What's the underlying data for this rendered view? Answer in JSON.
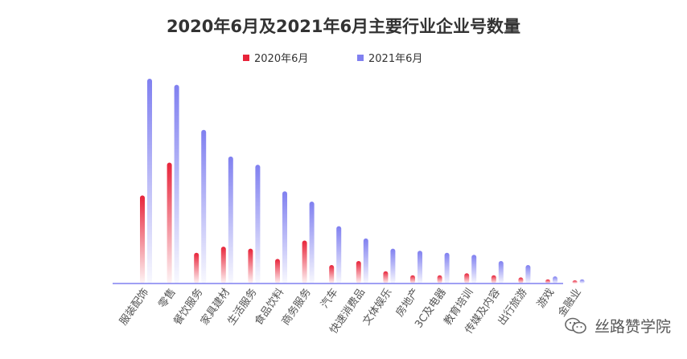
{
  "chart_data": {
    "type": "bar",
    "title": "2020年6月及2021年6月主要行业企业号数量",
    "categories": [
      "服装配饰",
      "零售",
      "餐饮服务",
      "家具建材",
      "生活服务",
      "食品饮料",
      "商务服务",
      "汽车",
      "快速消费品",
      "文体娱乐",
      "房地产",
      "3C及电器",
      "教育培训",
      "传媒及内容",
      "出行旅游",
      "游戏",
      "金融业"
    ],
    "series": [
      {
        "name": "2020年6月",
        "color": "#e8243a",
        "values": [
          43,
          59,
          15,
          18,
          17,
          12,
          21,
          9,
          11,
          6,
          4,
          4,
          5,
          4,
          3,
          2,
          1.5
        ]
      },
      {
        "name": "2021年6月",
        "color": "#8080f0",
        "values": [
          100,
          97,
          75,
          62,
          58,
          45,
          40,
          28,
          22,
          17,
          16,
          15,
          14,
          11,
          9,
          3.5,
          2
        ]
      }
    ],
    "ylim": [
      0,
      100
    ],
    "legend_position": "top-center",
    "grid": false
  },
  "watermark": {
    "text": "丝路赞学院",
    "icon": "wechat-icon"
  }
}
